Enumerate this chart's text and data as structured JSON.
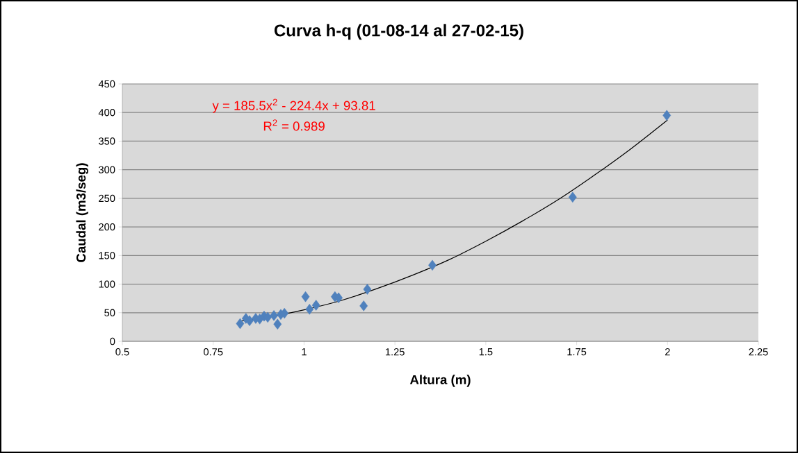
{
  "chart_data": {
    "type": "scatter",
    "title": "Curva h-q (01-08-14 al 27-02-15)",
    "xlabel": "Altura (m)",
    "ylabel": "Caudal (m3/seg)",
    "xlim": [
      0.5,
      2.25
    ],
    "xticks": [
      0.5,
      0.75,
      1,
      1.25,
      1.5,
      1.75,
      2,
      2.25
    ],
    "ylim": [
      0,
      450
    ],
    "yticks": [
      0,
      50,
      100,
      150,
      200,
      250,
      300,
      350,
      400,
      450
    ],
    "grid": "y",
    "marker": "diamond",
    "annotations": [
      "y = 185.5x$^{2}$ - 224.4x + 93.81",
      "R$^{2}$ = 0.989"
    ],
    "series": [
      {
        "color": "#4f81bd",
        "x": [
          0.824,
          0.84,
          0.85,
          0.867,
          0.878,
          0.89,
          0.9,
          0.917,
          0.927,
          0.936,
          0.946,
          1.004,
          1.015,
          1.033,
          1.085,
          1.095,
          1.164,
          1.174,
          1.353,
          1.739,
          1.998
        ],
        "values": [
          31,
          40,
          36,
          40,
          39,
          44,
          42,
          45,
          30,
          47,
          49,
          78,
          56,
          63,
          78,
          76,
          62,
          91,
          133,
          252,
          395
        ]
      },
      {
        "type": "line",
        "marker": "none",
        "color": "#000000",
        "x": [
          0.82,
          0.9,
          1.0,
          1.1,
          1.2,
          1.3,
          1.4,
          1.5,
          1.6,
          1.7,
          1.8,
          1.9,
          2.0
        ],
        "values": [
          35,
          42,
          55,
          71,
          92,
          116,
          143,
          175,
          210,
          248,
          291,
          337,
          387
        ]
      }
    ]
  }
}
